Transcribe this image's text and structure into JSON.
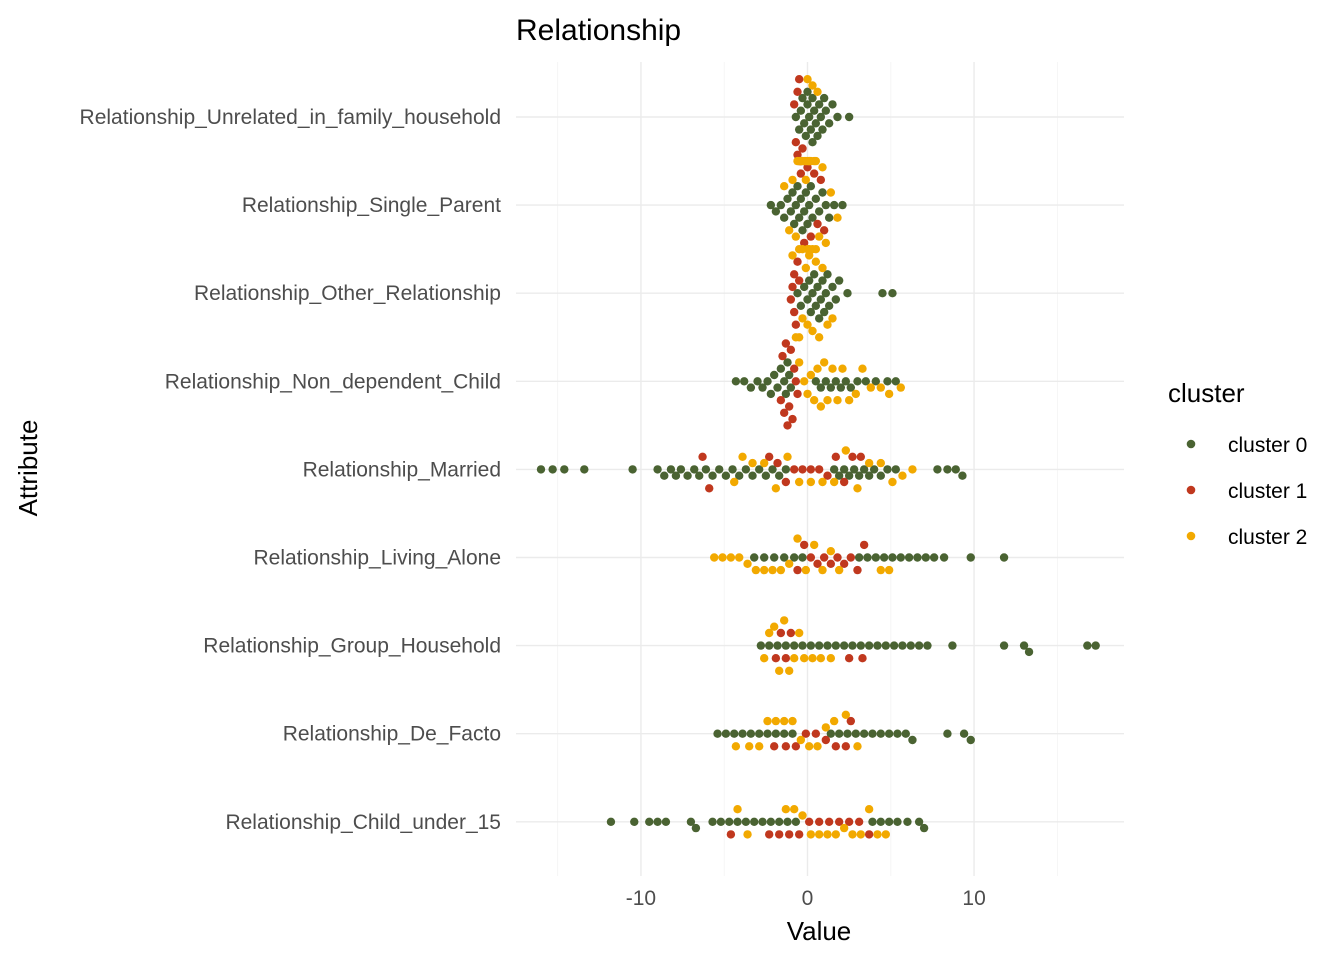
{
  "chart_data": {
    "type": "scatter",
    "subtype": "beeswarm",
    "title": "Relationship",
    "xlabel": "Value",
    "ylabel": "Attribute",
    "xlim": [
      -17.5,
      19
    ],
    "x_ticks": [
      -10,
      0,
      10
    ],
    "x_tick_labels": [
      "-10",
      "0",
      "10"
    ],
    "grid": true,
    "legend": {
      "title": "cluster",
      "placement": "right",
      "entries": [
        {
          "name": "cluster 0",
          "color": "#4a6332"
        },
        {
          "name": "cluster 1",
          "color": "#c0381e"
        },
        {
          "name": "cluster 2",
          "color": "#f2a900"
        }
      ]
    },
    "categories": [
      "Relationship_Unrelated_in_family_household",
      "Relationship_Single_Parent",
      "Relationship_Other_Relationship",
      "Relationship_Non_dependent_Child",
      "Relationship_Married",
      "Relationship_Living_Alone",
      "Relationship_Group_Household",
      "Relationship_De_Facto",
      "Relationship_Child_under_15"
    ],
    "series": [
      {
        "name": "cluster 0",
        "color": "#4a6332",
        "distributions": [
          {
            "category": "Relationship_Unrelated_in_family_household",
            "values": [
              -0.7,
              -0.5,
              -0.4,
              -0.3,
              -0.2,
              -0.1,
              0,
              0,
              0.1,
              0.2,
              0.3,
              0.3,
              0.4,
              0.5,
              0.6,
              0.7,
              0.8,
              0.9,
              1.0,
              1.1,
              1.3,
              1.5,
              1.8,
              2.5
            ]
          },
          {
            "category": "Relationship_Single_Parent",
            "values": [
              -2.2,
              -1.9,
              -1.6,
              -1.4,
              -1.2,
              -1.0,
              -0.9,
              -0.8,
              -0.7,
              -0.6,
              -0.5,
              -0.4,
              -0.3,
              -0.2,
              -0.1,
              0,
              0.1,
              0.2,
              0.3,
              0.5,
              0.7,
              0.9,
              1.1,
              1.3,
              1.6,
              2.1
            ]
          },
          {
            "category": "Relationship_Other_Relationship",
            "values": [
              -0.6,
              -0.4,
              -0.2,
              0,
              0.1,
              0.2,
              0.3,
              0.4,
              0.5,
              0.6,
              0.7,
              0.8,
              0.9,
              1.0,
              1.1,
              1.2,
              1.3,
              1.5,
              1.7,
              1.9,
              2.4,
              4.5,
              5.1
            ]
          },
          {
            "category": "Relationship_Non_dependent_Child",
            "values": [
              -4.3,
              -3.8,
              -3.4,
              -3.0,
              -2.7,
              -2.4,
              -2.2,
              -2.0,
              -1.8,
              -1.6,
              -1.4,
              -1.3,
              -1.2,
              -1.1,
              -1.0,
              0.5,
              0.8,
              1.1,
              1.4,
              1.7,
              2.0,
              2.3,
              2.6,
              3.0,
              3.5,
              4.1,
              4.8,
              5.3
            ]
          },
          {
            "category": "Relationship_Married",
            "values": [
              -16.0,
              -15.3,
              -14.6,
              -13.4,
              -10.5,
              -9.0,
              -8.6,
              -8.2,
              -7.9,
              -7.6,
              -7.2,
              -6.8,
              -6.5,
              -6.1,
              -5.7,
              -5.3,
              -4.9,
              -4.5,
              -4.1,
              -3.7,
              -3.3,
              -2.9,
              -2.5,
              -2.1,
              -1.7,
              -1.3,
              1.6,
              1.9,
              2.2,
              2.5,
              2.8,
              3.1,
              3.4,
              3.7,
              4.0,
              4.4,
              4.8,
              5.3,
              7.8,
              8.4,
              8.9,
              9.3
            ]
          },
          {
            "category": "Relationship_Living_Alone",
            "values": [
              -3.2,
              -2.6,
              -2.0,
              -1.4,
              -0.8,
              -0.3,
              3.1,
              3.6,
              4.1,
              4.6,
              5.1,
              5.6,
              6.1,
              6.6,
              7.1,
              7.6,
              8.2,
              9.8,
              11.8
            ]
          },
          {
            "category": "Relationship_Group_Household",
            "values": [
              -2.8,
              -2.3,
              -1.8,
              -1.3,
              -0.8,
              -0.3,
              0.2,
              0.7,
              1.2,
              1.7,
              2.2,
              2.7,
              3.2,
              3.7,
              4.2,
              4.7,
              5.2,
              5.7,
              6.2,
              6.7,
              7.2,
              8.7,
              11.8,
              13.0,
              13.3,
              16.8,
              17.3
            ]
          },
          {
            "category": "Relationship_De_Facto",
            "values": [
              -5.4,
              -4.9,
              -4.4,
              -3.9,
              -3.4,
              -2.9,
              -2.4,
              -1.9,
              -1.4,
              -0.9,
              1.4,
              1.9,
              2.4,
              2.9,
              3.4,
              3.9,
              4.4,
              4.9,
              5.4,
              5.9,
              6.3,
              8.4,
              9.4,
              9.8
            ]
          },
          {
            "category": "Relationship_Child_under_15",
            "values": [
              -11.8,
              -10.4,
              -9.5,
              -9.0,
              -8.5,
              -7.0,
              -6.7,
              -5.7,
              -5.2,
              -4.7,
              -4.2,
              -3.7,
              -3.2,
              -2.7,
              -2.2,
              -1.7,
              -1.2,
              -0.7,
              3.9,
              4.4,
              4.9,
              5.4,
              6.0,
              6.7,
              7.0
            ]
          }
        ]
      },
      {
        "name": "cluster 1",
        "color": "#c0381e",
        "distributions": [
          {
            "category": "Relationship_Unrelated_in_family_household",
            "values": [
              -0.8,
              -0.7,
              -0.6,
              -0.6,
              -0.5,
              -0.5,
              -0.4,
              -0.4,
              -0.3
            ]
          },
          {
            "category": "Relationship_Single_Parent",
            "values": [
              -0.4,
              -0.2,
              0,
              0.2,
              0.4,
              0.6,
              0.8,
              1.0
            ]
          },
          {
            "category": "Relationship_Other_Relationship",
            "values": [
              -1.0,
              -0.9,
              -0.8,
              -0.8,
              -0.7,
              -0.6,
              -0.5
            ]
          },
          {
            "category": "Relationship_Non_dependent_Child",
            "values": [
              -1.6,
              -1.5,
              -1.4,
              -1.3,
              -1.2,
              -1.1,
              -1.0,
              -0.9,
              -0.8,
              -0.7,
              -0.6
            ]
          },
          {
            "category": "Relationship_Married",
            "values": [
              -6.3,
              -5.9,
              -2.3,
              -1.8,
              -1.3,
              -0.8,
              -0.3,
              0.2,
              0.7,
              1.2,
              1.7,
              2.2,
              2.7,
              3.2
            ]
          },
          {
            "category": "Relationship_Living_Alone",
            "values": [
              -0.6,
              -0.2,
              0.2,
              0.6,
              1.0,
              1.4,
              1.8,
              2.2,
              2.6,
              3.0,
              3.4
            ]
          },
          {
            "category": "Relationship_Group_Household",
            "values": [
              -1.9,
              -1.6,
              -1.3,
              -1.0,
              2.5,
              3.3
            ]
          },
          {
            "category": "Relationship_De_Facto",
            "values": [
              -2.0,
              -1.3,
              -0.7,
              -0.1,
              0.5,
              1.1,
              1.7,
              2.3,
              2.6
            ]
          },
          {
            "category": "Relationship_Child_under_15",
            "values": [
              -4.6,
              -2.3,
              -1.7,
              -1.1,
              -0.5,
              0.1,
              0.7,
              1.3,
              1.9,
              2.5,
              3.1,
              3.7
            ]
          }
        ]
      },
      {
        "name": "cluster 2",
        "color": "#f2a900",
        "distributions": [
          {
            "category": "Relationship_Unrelated_in_family_household",
            "values": [
              -0.6,
              -0.5,
              -0.4,
              -0.3,
              -0.2,
              -0.1,
              0,
              0,
              0.1,
              0.1,
              0.2,
              0.3,
              0.4,
              0.5,
              0.6
            ]
          },
          {
            "category": "Relationship_Single_Parent",
            "values": [
              -1.4,
              -1.1,
              -0.9,
              -0.7,
              -0.5,
              -0.3,
              -0.1,
              0,
              0.1,
              0.3,
              0.5,
              0.7,
              0.9,
              1.1,
              1.4,
              1.8
            ]
          },
          {
            "category": "Relationship_Other_Relationship",
            "values": [
              -0.9,
              -0.7,
              -0.5,
              -0.3,
              -0.1,
              0,
              0.1,
              0.3,
              0.5,
              0.7,
              0.9,
              1.2,
              1.5
            ]
          },
          {
            "category": "Relationship_Non_dependent_Child",
            "values": [
              -0.5,
              -0.2,
              0,
              0.2,
              0.4,
              0.6,
              0.8,
              1.0,
              1.2,
              1.5,
              1.8,
              2.1,
              2.5,
              2.9,
              3.3,
              3.8,
              4.4,
              4.9,
              5.6
            ]
          },
          {
            "category": "Relationship_Married",
            "values": [
              -4.4,
              -3.9,
              -3.3,
              -2.6,
              -1.9,
              -1.2,
              -0.5,
              0.2,
              0.9,
              1.6,
              2.3,
              3.0,
              3.7,
              4.4,
              5.1,
              5.7,
              6.3
            ]
          },
          {
            "category": "Relationship_Living_Alone",
            "values": [
              -5.6,
              -5.1,
              -4.6,
              -4.1,
              -3.6,
              -3.1,
              -2.6,
              -2.1,
              -1.6,
              -1.1,
              -0.6,
              -0.1,
              0.4,
              0.9,
              1.4,
              1.9,
              4.4,
              4.9
            ]
          },
          {
            "category": "Relationship_Group_Household",
            "values": [
              -2.6,
              -2.3,
              -2.0,
              -1.7,
              -1.4,
              -1.1,
              -0.8,
              -0.5,
              -0.2,
              0.3,
              0.8,
              1.4
            ]
          },
          {
            "category": "Relationship_De_Facto",
            "values": [
              -4.3,
              -3.5,
              -2.9,
              -2.4,
              -1.9,
              -1.4,
              -0.9,
              -0.4,
              0.1,
              0.6,
              1.1,
              1.6,
              2.3,
              3.0
            ]
          },
          {
            "category": "Relationship_Child_under_15",
            "values": [
              -4.2,
              -3.6,
              -1.3,
              -0.8,
              -0.3,
              0.2,
              0.7,
              1.2,
              1.7,
              2.2,
              2.7,
              3.2,
              3.7,
              4.2,
              4.7
            ]
          }
        ]
      }
    ]
  }
}
